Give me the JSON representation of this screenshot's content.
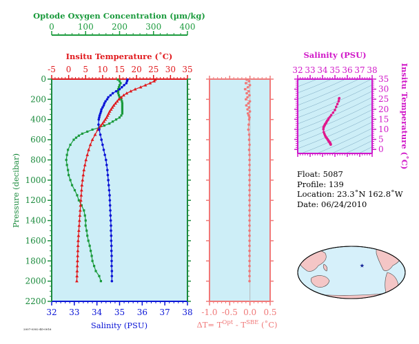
{
  "colors": {
    "plot_bg": "#cdeef7",
    "oxygen": "#1a9a3c",
    "temperature": "#e0181c",
    "salinity": "#0a14d6",
    "pressure_axis": "#1a8a3c",
    "delta": "#f07878",
    "ts_axis": "#d017c8",
    "ts_curve": "#e0188c"
  },
  "float_info": {
    "float": "Float:  5087",
    "profile": "Profile:  139",
    "location": "Location:  23.3˚N  162.8˚W",
    "date": "Date:  06/24/2010"
  },
  "footer_stamp": "2007-0302-4D-0016",
  "chart_data": [
    {
      "type": "line",
      "name": "profiles",
      "ylabel": "Pressure (decibar)",
      "ylim": [
        2200,
        0
      ],
      "yticks": [
        0,
        200,
        400,
        600,
        800,
        1000,
        1200,
        1400,
        1600,
        1800,
        2000,
        2200
      ],
      "axes": {
        "oxygen": {
          "label": "Optode Oxygen Concentration (µm/kg)",
          "lim": [
            0,
            400
          ],
          "ticks": [
            0,
            100,
            200,
            300,
            400
          ]
        },
        "temperature": {
          "label": "Insitu Temperature (˚C)",
          "lim": [
            -5,
            35
          ],
          "ticks": [
            -5,
            0,
            5,
            10,
            15,
            20,
            25,
            30,
            35
          ]
        },
        "salinity": {
          "label": "Salinity (PSU)",
          "lim": [
            32,
            38
          ],
          "ticks": [
            32,
            33,
            34,
            35,
            36,
            37,
            38
          ]
        }
      },
      "series": [
        {
          "name": "Optode Oxygen Concentration",
          "axis": "oxygen",
          "marker": "square",
          "pressure": [
            5,
            20,
            40,
            60,
            80,
            100,
            120,
            140,
            160,
            180,
            200,
            220,
            240,
            260,
            280,
            300,
            320,
            340,
            360,
            380,
            400,
            420,
            440,
            460,
            480,
            500,
            520,
            540,
            560,
            580,
            600,
            650,
            700,
            750,
            800,
            850,
            900,
            950,
            1000,
            1050,
            1100,
            1150,
            1200,
            1250,
            1300,
            1350,
            1400,
            1450,
            1500,
            1550,
            1600,
            1650,
            1700,
            1750,
            1800,
            1850,
            1900,
            1950,
            2000
          ],
          "value": [
            195,
            200,
            203,
            200,
            198,
            196,
            196,
            196,
            198,
            200,
            205,
            207,
            208,
            208,
            208,
            208,
            208,
            208,
            205,
            200,
            190,
            180,
            170,
            155,
            140,
            120,
            105,
            90,
            80,
            72,
            65,
            55,
            48,
            45,
            43,
            45,
            48,
            50,
            55,
            60,
            68,
            75,
            80,
            88,
            95,
            98,
            100,
            100,
            103,
            105,
            108,
            112,
            115,
            118,
            120,
            125,
            130,
            140,
            145
          ]
        },
        {
          "name": "Insitu Temperature",
          "axis": "temperature",
          "marker": "triangle",
          "pressure": [
            5,
            20,
            40,
            60,
            80,
            100,
            120,
            140,
            160,
            180,
            200,
            220,
            240,
            260,
            280,
            300,
            320,
            340,
            360,
            380,
            400,
            420,
            440,
            460,
            480,
            500,
            550,
            600,
            650,
            700,
            750,
            800,
            850,
            900,
            950,
            1000,
            1050,
            1100,
            1150,
            1200,
            1250,
            1300,
            1350,
            1400,
            1450,
            1500,
            1550,
            1600,
            1650,
            1700,
            1750,
            1800,
            1850,
            1900,
            1950,
            2000
          ],
          "value": [
            25.5,
            25.2,
            24,
            22.6,
            21.2,
            19.6,
            18.3,
            17.1,
            16.2,
            15.5,
            14.8,
            14.3,
            13.8,
            13.3,
            12.9,
            12.5,
            12.1,
            11.8,
            11.5,
            11.2,
            10.8,
            10.4,
            10,
            9.5,
            9,
            8.6,
            7.8,
            7,
            6.4,
            5.9,
            5.5,
            5.1,
            4.8,
            4.5,
            4.3,
            4.1,
            3.9,
            3.8,
            3.7,
            3.6,
            3.5,
            3.4,
            3.3,
            3.2,
            3.1,
            3,
            2.9,
            2.8,
            2.75,
            2.7,
            2.65,
            2.6,
            2.55,
            2.5,
            2.45,
            2.4
          ]
        },
        {
          "name": "Salinity",
          "axis": "salinity",
          "marker": "circle",
          "pressure": [
            5,
            20,
            40,
            60,
            80,
            100,
            120,
            140,
            160,
            180,
            200,
            220,
            240,
            260,
            280,
            300,
            320,
            340,
            360,
            380,
            400,
            450,
            500,
            550,
            600,
            650,
            700,
            750,
            800,
            850,
            900,
            950,
            1000,
            1050,
            1100,
            1150,
            1200,
            1250,
            1300,
            1350,
            1400,
            1450,
            1500,
            1550,
            1600,
            1650,
            1700,
            1750,
            1800,
            1850,
            1900,
            1950,
            2000
          ],
          "value": [
            35.35,
            35.33,
            35.3,
            35.2,
            35.1,
            35.0,
            34.85,
            34.7,
            34.6,
            34.5,
            34.45,
            34.38,
            34.33,
            34.3,
            34.25,
            34.2,
            34.18,
            34.15,
            34.12,
            34.1,
            34.08,
            34.07,
            34.1,
            34.15,
            34.2,
            34.25,
            34.3,
            34.35,
            34.4,
            34.43,
            34.46,
            34.48,
            34.5,
            34.52,
            34.54,
            34.56,
            34.57,
            34.58,
            34.59,
            34.6,
            34.61,
            34.62,
            34.62,
            34.63,
            34.63,
            34.64,
            34.64,
            34.65,
            34.65,
            34.65,
            34.66,
            34.66,
            34.66
          ]
        }
      ]
    },
    {
      "type": "scatter",
      "name": "temperature_difference",
      "xlabel": "ΔT= T^Opt - T^SBE (˚C)",
      "xlim": [
        -1.0,
        0.5
      ],
      "xticks": [
        -1.0,
        -0.5,
        0.0,
        0.5
      ],
      "xtick_labels": [
        "-1.0",
        "-0.5",
        "0.0",
        "0.5"
      ],
      "ylim": [
        2200,
        0
      ],
      "series": [
        {
          "name": "ΔT",
          "pressure": [
            5,
            20,
            40,
            60,
            80,
            100,
            120,
            140,
            160,
            180,
            200,
            220,
            240,
            260,
            280,
            300,
            320,
            340,
            360,
            380,
            400,
            450,
            500,
            550,
            600,
            650,
            700,
            750,
            800,
            850,
            900,
            950,
            1000,
            1050,
            1100,
            1150,
            1200,
            1250,
            1300,
            1350,
            1400,
            1450,
            1500,
            1550,
            1600,
            1650,
            1700,
            1750,
            1800,
            1850,
            1900,
            1950,
            2000
          ],
          "value": [
            -0.08,
            -0.02,
            -0.1,
            0.0,
            -0.05,
            -0.12,
            -0.03,
            -0.08,
            -0.01,
            -0.06,
            -0.1,
            0.0,
            -0.04,
            -0.09,
            -0.02,
            -0.06,
            0.0,
            -0.05,
            -0.03,
            -0.01,
            -0.02,
            -0.03,
            -0.04,
            -0.02,
            -0.02,
            -0.01,
            -0.02,
            -0.01,
            -0.01,
            -0.01,
            -0.01,
            -0.01,
            -0.01,
            -0.01,
            -0.01,
            -0.01,
            -0.01,
            -0.01,
            -0.01,
            -0.01,
            -0.01,
            -0.01,
            -0.01,
            -0.01,
            -0.01,
            -0.01,
            -0.01,
            -0.01,
            -0.01,
            -0.01,
            -0.01,
            -0.01,
            -0.01
          ]
        }
      ]
    },
    {
      "type": "scatter",
      "name": "ts_diagram",
      "xlabel": "Salinity (PSU)",
      "ylabel": "Insitu Temperature (˚C)",
      "xlim": [
        32,
        38
      ],
      "ylim": [
        -2,
        35
      ],
      "xticks": [
        32,
        33,
        34,
        35,
        36,
        37,
        38
      ],
      "yticks": [
        0,
        5,
        10,
        15,
        20,
        25,
        30,
        35
      ],
      "salinity": [
        35.35,
        35.33,
        35.3,
        35.2,
        35.1,
        35.0,
        34.85,
        34.7,
        34.6,
        34.5,
        34.45,
        34.38,
        34.33,
        34.3,
        34.25,
        34.2,
        34.18,
        34.15,
        34.12,
        34.1,
        34.08,
        34.07,
        34.1,
        34.15,
        34.2,
        34.25,
        34.3,
        34.35,
        34.4,
        34.43,
        34.46,
        34.48,
        34.5,
        34.52,
        34.54,
        34.56,
        34.57,
        34.58,
        34.59,
        34.6,
        34.61,
        34.62,
        34.62,
        34.63,
        34.63,
        34.64,
        34.64,
        34.65,
        34.65,
        34.65,
        34.66,
        34.66,
        34.66
      ],
      "temperature": [
        25.5,
        25.2,
        24,
        22.6,
        21.2,
        19.6,
        18.3,
        17.1,
        16.2,
        15.5,
        14.8,
        14.3,
        13.8,
        13.3,
        12.9,
        12.5,
        12.1,
        11.8,
        11.5,
        11.2,
        10.8,
        10,
        8.6,
        7.8,
        7,
        6.4,
        5.9,
        5.5,
        5.1,
        4.8,
        4.5,
        4.3,
        4.1,
        3.9,
        3.8,
        3.7,
        3.6,
        3.5,
        3.4,
        3.3,
        3.2,
        3.1,
        3,
        2.9,
        2.8,
        2.75,
        2.7,
        2.65,
        2.6,
        2.55,
        2.5,
        2.45,
        2.4
      ]
    },
    {
      "type": "map",
      "name": "location_map",
      "marker": {
        "lat": 23.3,
        "lon": -162.8
      }
    }
  ]
}
